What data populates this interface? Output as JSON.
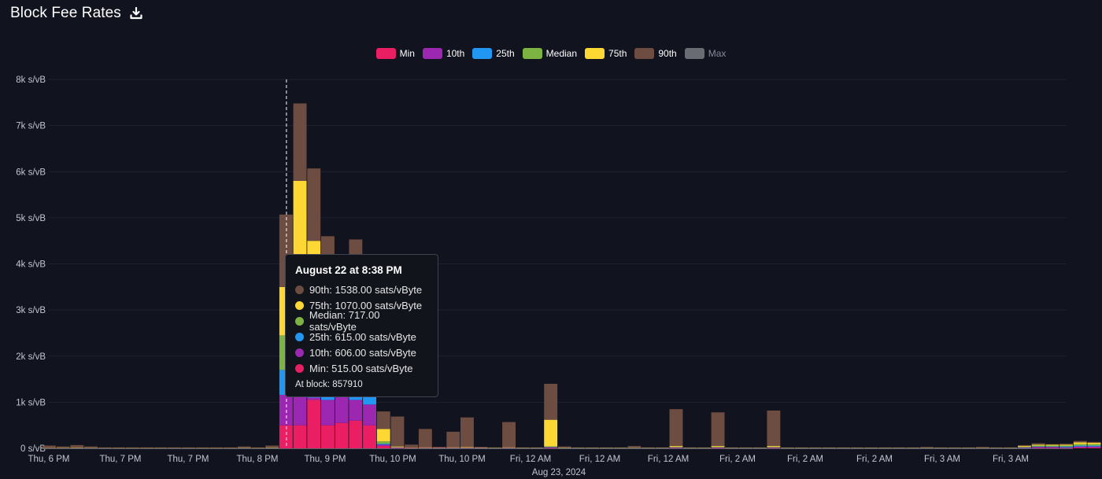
{
  "header": {
    "title": "Block Fee Rates"
  },
  "legend": [
    {
      "label": "Min",
      "color": "#e91e63",
      "active": true
    },
    {
      "label": "10th",
      "color": "#9c27b0",
      "active": true
    },
    {
      "label": "25th",
      "color": "#2196f3",
      "active": true
    },
    {
      "label": "Median",
      "color": "#7cb342",
      "active": true
    },
    {
      "label": "75th",
      "color": "#fdd835",
      "active": true
    },
    {
      "label": "90th",
      "color": "#6d4c41",
      "active": true
    },
    {
      "label": "Max",
      "color": "#696c72",
      "active": false
    }
  ],
  "tooltip": {
    "title": "August 22 at 8:38 PM",
    "rows": [
      {
        "text": "90th: 1538.00 sats/vByte",
        "color": "#6d4c41"
      },
      {
        "text": "75th: 1070.00 sats/vByte",
        "color": "#fdd835"
      },
      {
        "text": "Median: 717.00 sats/vByte",
        "color": "#7cb342"
      },
      {
        "text": "25th: 615.00 sats/vByte",
        "color": "#2196f3"
      },
      {
        "text": "10th: 606.00 sats/vByte",
        "color": "#9c27b0"
      },
      {
        "text": "Min: 515.00 sats/vByte",
        "color": "#e91e63"
      }
    ],
    "block": "At block: 857910"
  },
  "chart_data": {
    "type": "bar",
    "stacked": true,
    "y_ticks": [
      "0 s/vB",
      "1k s/vB",
      "2k s/vB",
      "3k s/vB",
      "4k s/vB",
      "5k s/vB",
      "6k s/vB",
      "7k s/vB",
      "8k s/vB"
    ],
    "ylim": [
      0,
      8000
    ],
    "x_ticks": [
      "Thu, 6 PM",
      "Thu, 7 PM",
      "Thu, 7 PM",
      "Thu, 8 PM",
      "Thu, 9 PM",
      "Thu, 10 PM",
      "Thu, 10 PM",
      "Fri, 12 AM",
      "Fri, 12 AM",
      "Fri, 12 AM",
      "Fri, 2 AM",
      "Fri, 2 AM",
      "Fri, 2 AM",
      "Fri, 3 AM",
      "Fri, 3 AM"
    ],
    "x_sublabel": "Aug 23, 2024",
    "grid": true,
    "legend_position": "top-center",
    "series_names": [
      "Min",
      "10th",
      "25th",
      "Median",
      "75th",
      "90th"
    ],
    "bars": [
      [
        2,
        2,
        3,
        4,
        5,
        60
      ],
      [
        2,
        2,
        2,
        3,
        5,
        40
      ],
      [
        3,
        3,
        4,
        5,
        10,
        70
      ],
      [
        2,
        2,
        3,
        4,
        5,
        40
      ],
      [
        2,
        2,
        2,
        3,
        4,
        20
      ],
      [
        2,
        2,
        2,
        3,
        4,
        20
      ],
      [
        2,
        2,
        2,
        3,
        4,
        20
      ],
      [
        2,
        2,
        2,
        3,
        4,
        20
      ],
      [
        2,
        2,
        2,
        3,
        4,
        20
      ],
      [
        2,
        2,
        2,
        3,
        4,
        20
      ],
      [
        2,
        2,
        2,
        3,
        4,
        20
      ],
      [
        2,
        2,
        2,
        3,
        4,
        20
      ],
      [
        2,
        2,
        2,
        3,
        4,
        20
      ],
      [
        2,
        2,
        2,
        3,
        4,
        20
      ],
      [
        3,
        3,
        4,
        5,
        8,
        40
      ],
      [
        2,
        2,
        2,
        3,
        4,
        20
      ],
      [
        3,
        3,
        4,
        5,
        10,
        60
      ],
      [
        500,
        1160,
        1700,
        2450,
        3500,
        5070
      ],
      [
        500,
        1200,
        1700,
        2500,
        5800,
        7480
      ],
      [
        1050,
        1100,
        1500,
        2600,
        4500,
        6070
      ],
      [
        500,
        1050,
        1600,
        2400,
        3700,
        4600
      ],
      [
        550,
        1250,
        1800,
        2500,
        3000,
        3700
      ],
      [
        600,
        1050,
        1500,
        2400,
        3300,
        4530
      ],
      [
        500,
        950,
        1300,
        1700,
        2200,
        3300
      ],
      [
        50,
        80,
        100,
        150,
        420,
        800
      ],
      [
        10,
        15,
        20,
        25,
        40,
        690
      ],
      [
        5,
        8,
        10,
        12,
        15,
        80
      ],
      [
        5,
        8,
        10,
        15,
        20,
        420
      ],
      [
        5,
        8,
        10,
        12,
        15,
        30
      ],
      [
        5,
        8,
        10,
        15,
        20,
        360
      ],
      [
        5,
        8,
        10,
        15,
        25,
        670
      ],
      [
        5,
        6,
        8,
        10,
        15,
        30
      ],
      [
        2,
        3,
        4,
        5,
        8,
        20
      ],
      [
        5,
        8,
        10,
        15,
        20,
        570
      ],
      [
        2,
        3,
        4,
        5,
        8,
        20
      ],
      [
        2,
        3,
        4,
        5,
        8,
        20
      ],
      [
        10,
        20,
        30,
        40,
        620,
        1400
      ],
      [
        2,
        3,
        4,
        5,
        10,
        40
      ],
      [
        2,
        3,
        4,
        5,
        8,
        20
      ],
      [
        2,
        3,
        4,
        5,
        8,
        20
      ],
      [
        2,
        3,
        4,
        5,
        8,
        20
      ],
      [
        2,
        3,
        4,
        5,
        8,
        20
      ],
      [
        2,
        3,
        4,
        5,
        8,
        50
      ],
      [
        2,
        3,
        4,
        5,
        8,
        20
      ],
      [
        2,
        3,
        4,
        5,
        8,
        20
      ],
      [
        10,
        15,
        20,
        30,
        50,
        850
      ],
      [
        2,
        3,
        4,
        5,
        8,
        20
      ],
      [
        2,
        3,
        4,
        5,
        8,
        20
      ],
      [
        10,
        15,
        20,
        30,
        50,
        780
      ],
      [
        2,
        3,
        4,
        5,
        8,
        20
      ],
      [
        2,
        3,
        4,
        5,
        8,
        20
      ],
      [
        2,
        3,
        4,
        5,
        8,
        20
      ],
      [
        10,
        15,
        20,
        30,
        50,
        820
      ],
      [
        2,
        3,
        4,
        5,
        8,
        20
      ],
      [
        2,
        3,
        4,
        5,
        8,
        20
      ],
      [
        2,
        3,
        4,
        5,
        8,
        20
      ],
      [
        2,
        3,
        4,
        5,
        8,
        20
      ],
      [
        2,
        3,
        4,
        5,
        8,
        20
      ],
      [
        2,
        3,
        4,
        5,
        8,
        20
      ],
      [
        2,
        3,
        4,
        5,
        8,
        20
      ],
      [
        2,
        3,
        4,
        5,
        8,
        20
      ],
      [
        2,
        3,
        4,
        5,
        8,
        20
      ],
      [
        2,
        3,
        4,
        5,
        8,
        20
      ],
      [
        2,
        3,
        4,
        5,
        8,
        30
      ],
      [
        2,
        3,
        4,
        5,
        8,
        20
      ],
      [
        2,
        3,
        4,
        5,
        8,
        20
      ],
      [
        2,
        3,
        4,
        5,
        8,
        20
      ],
      [
        2,
        3,
        4,
        5,
        8,
        30
      ],
      [
        2,
        3,
        4,
        5,
        8,
        20
      ],
      [
        2,
        3,
        4,
        5,
        8,
        20
      ],
      [
        5,
        10,
        20,
        30,
        50,
        70
      ],
      [
        10,
        30,
        40,
        60,
        80,
        110
      ],
      [
        10,
        30,
        40,
        60,
        80,
        90
      ],
      [
        10,
        20,
        40,
        60,
        80,
        100
      ],
      [
        15,
        40,
        60,
        90,
        130,
        160
      ],
      [
        15,
        40,
        60,
        90,
        120,
        140
      ]
    ],
    "highlight_index": 17
  }
}
